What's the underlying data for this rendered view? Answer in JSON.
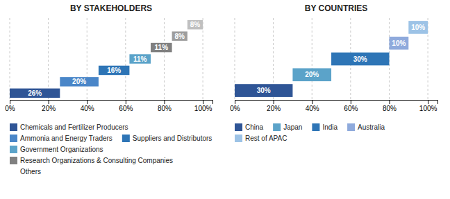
{
  "chart_data": [
    {
      "type": "waterfall",
      "orientation": "horizontal",
      "title": "BY STAKEHOLDERS",
      "categories": [
        null,
        null,
        null,
        null,
        null,
        null,
        null
      ],
      "values": [
        26,
        20,
        16,
        11,
        11,
        8,
        8
      ],
      "value_labels": [
        "26%",
        "20%",
        "16%",
        "11%",
        "11%",
        "8%",
        "8%"
      ],
      "colors": [
        "#2f5596",
        "#4a86c8",
        "#2e75b6",
        "#5ba3c9",
        "#808080",
        "#9e9e9e",
        "#c0c0c0"
      ],
      "data_labels": true,
      "xlim": [
        0,
        105
      ],
      "xticks": [
        {
          "value": 0,
          "label": "0%"
        },
        {
          "value": 20,
          "label": "20%"
        },
        {
          "value": 40,
          "label": "40%"
        },
        {
          "value": 60,
          "label": "60%"
        },
        {
          "value": 80,
          "label": "80%"
        },
        {
          "value": 100,
          "label": "100%"
        }
      ],
      "grid": true,
      "tick_labels": "x",
      "legend_entries": [
        {
          "name": "Chemicals and Fertilizer Producers",
          "color": "#2f5596"
        },
        {
          "name": "Ammonia and Energy Traders",
          "color": "#4a86c8"
        },
        {
          "name": "Suppliers and Distributors",
          "color": "#2e75b6"
        },
        {
          "name": "Government Organizations",
          "color": "#5ba3c9"
        },
        {
          "name": "Research Organizations & Consulting Companies",
          "color": "#808080"
        },
        {
          "name": "Others",
          "color": null
        }
      ]
    },
    {
      "type": "waterfall",
      "orientation": "horizontal",
      "title": "BY COUNTRIES",
      "categories": [
        null,
        null,
        null,
        null,
        null
      ],
      "values": [
        30,
        20,
        30,
        10,
        10
      ],
      "value_labels": [
        "30%",
        "20%",
        "30%",
        "10%",
        "10%"
      ],
      "colors": [
        "#2f5596",
        "#5ba3c9",
        "#2e75b6",
        "#8faadc",
        "#9dc3e6"
      ],
      "data_labels": true,
      "xlim": [
        0,
        105
      ],
      "xticks": [
        {
          "value": 0,
          "label": "0%"
        },
        {
          "value": 20,
          "label": "20%"
        },
        {
          "value": 40,
          "label": "40%"
        },
        {
          "value": 60,
          "label": "60%"
        },
        {
          "value": 80,
          "label": "80%"
        },
        {
          "value": 100,
          "label": "100%"
        }
      ],
      "grid": true,
      "tick_labels": "x",
      "legend_entries": [
        {
          "name": "China",
          "color": "#2f5596"
        },
        {
          "name": "Japan",
          "color": "#5ba3c9"
        },
        {
          "name": "India",
          "color": "#2e75b6"
        },
        {
          "name": "Australia",
          "color": "#8faadc"
        },
        {
          "name": "Rest of APAC",
          "color": "#9dc3e6"
        }
      ]
    }
  ]
}
